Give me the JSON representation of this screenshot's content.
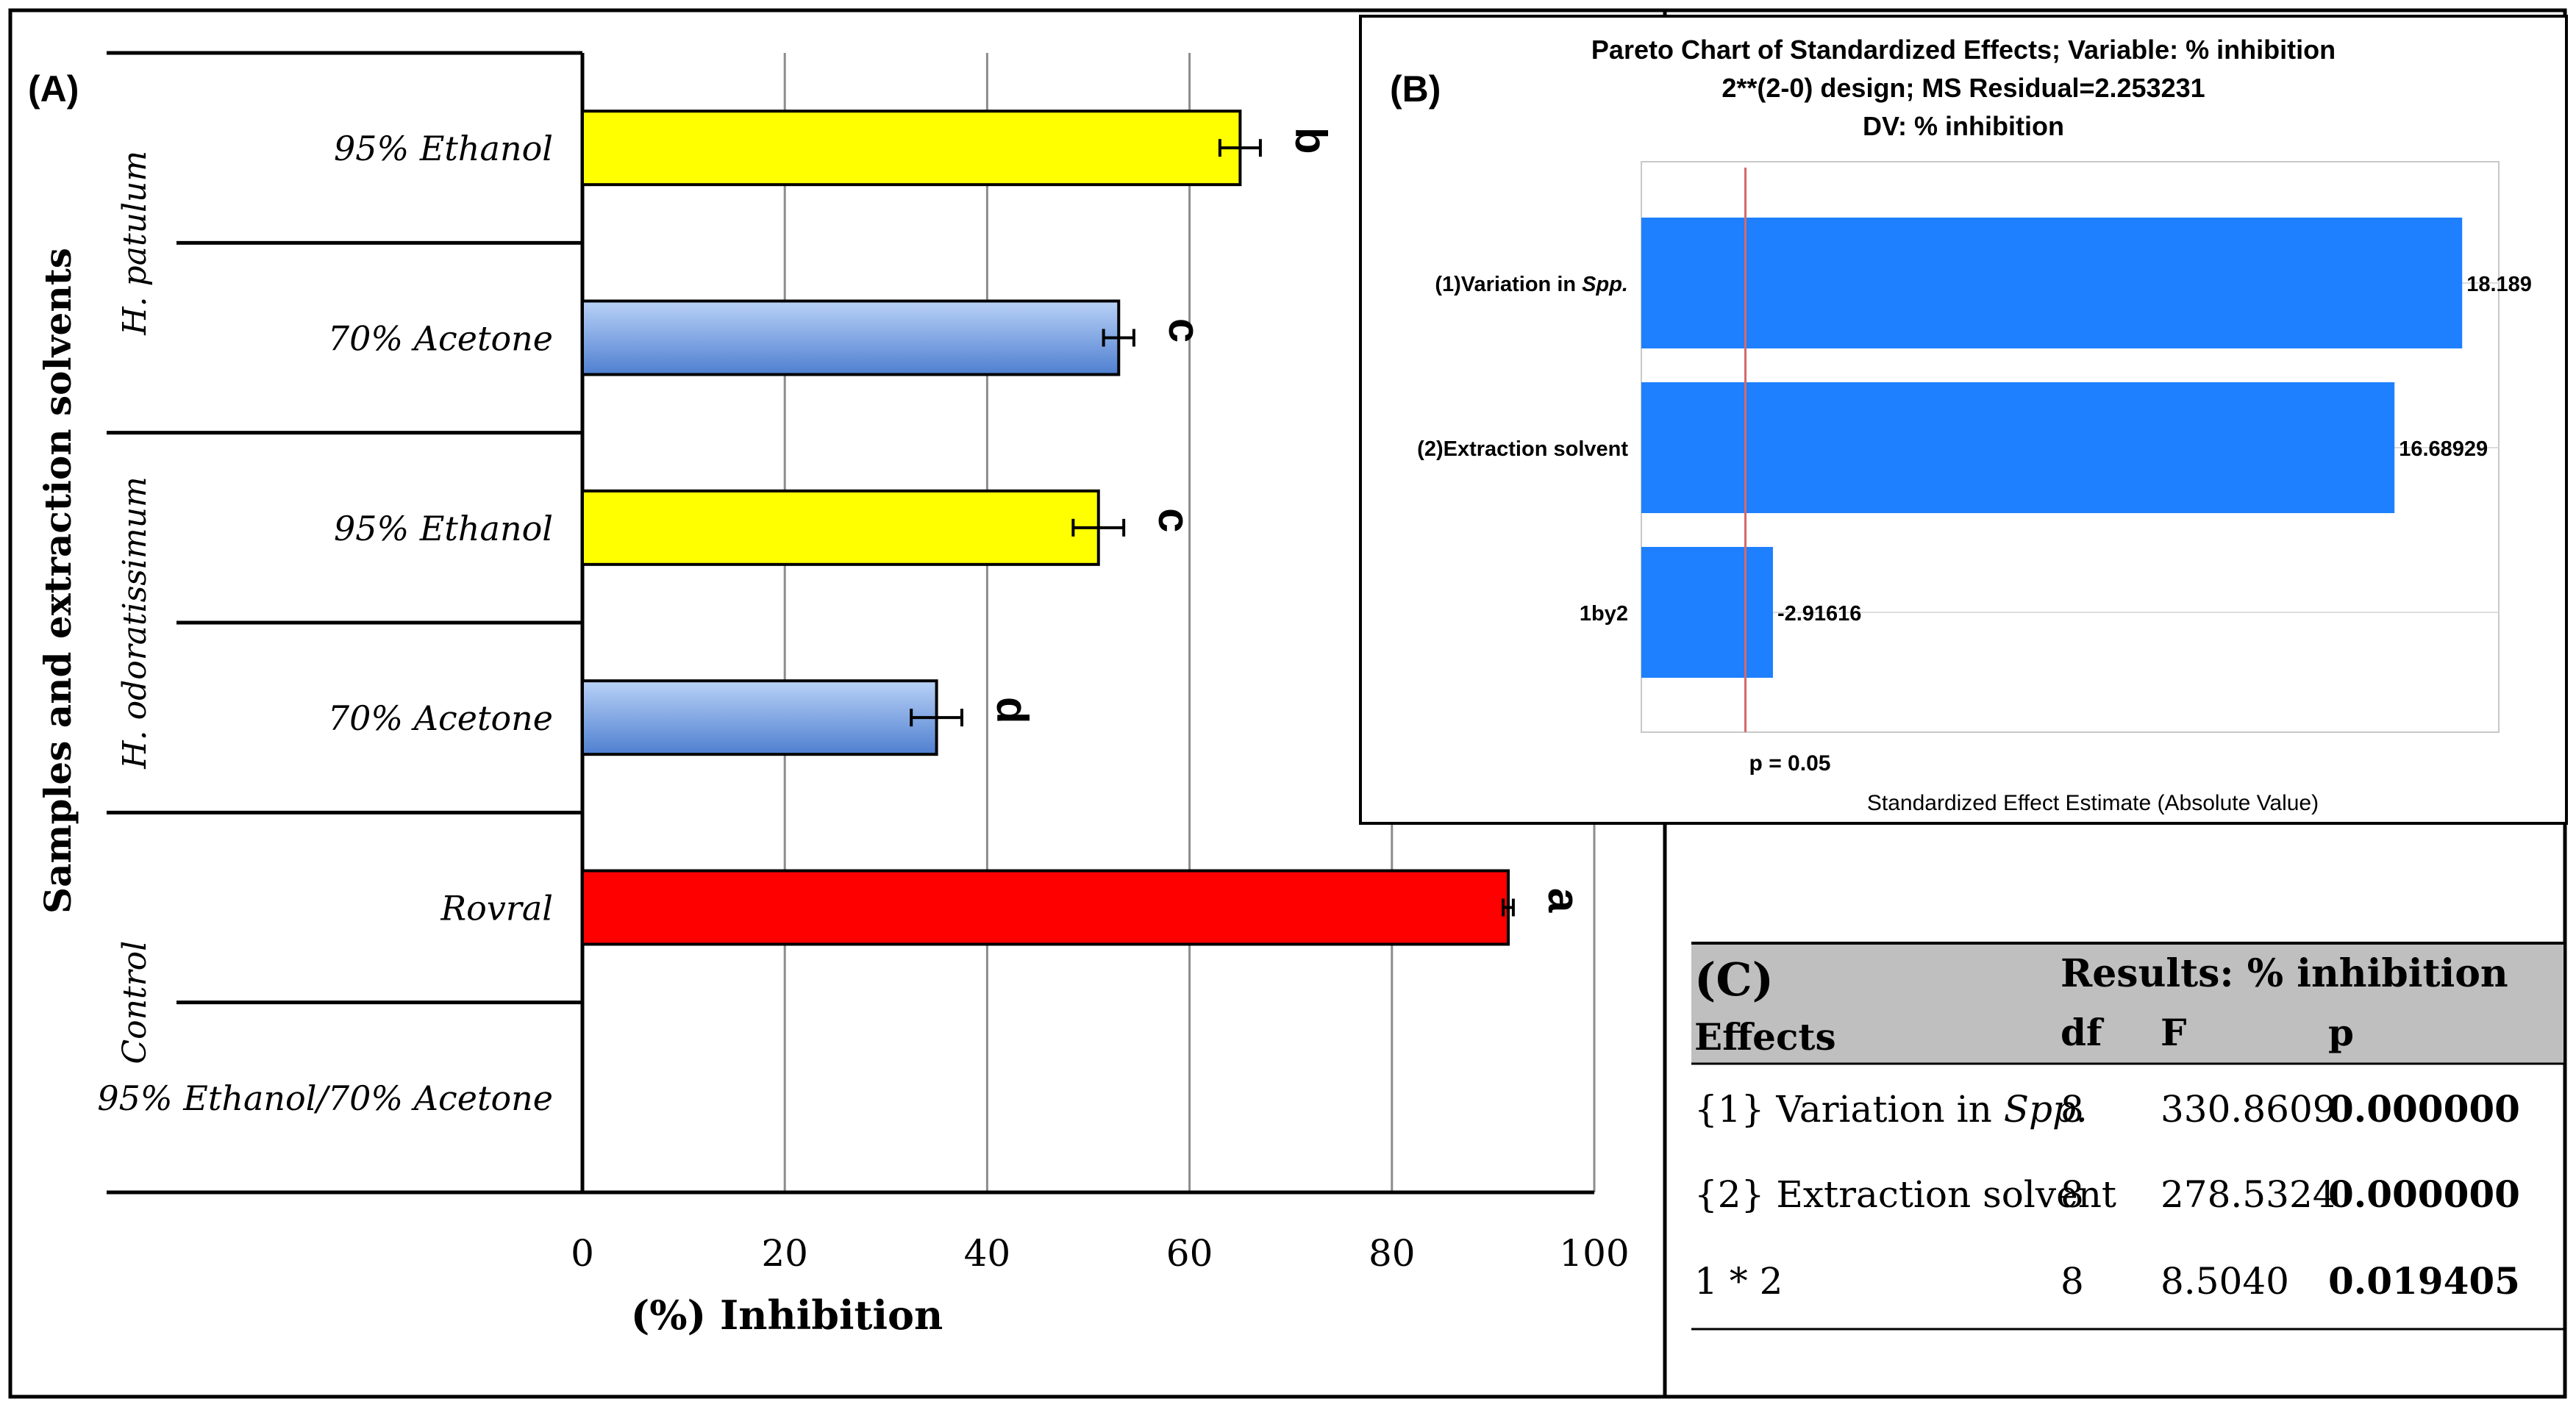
{
  "colors": {
    "yellow": "#FFFF00",
    "blue_light": "#A9C6F2",
    "blue_dark": "#4F7FD0",
    "red": "#FF0000",
    "pareto_bar": "#1E7FFF",
    "ref_line": "#D46A6A",
    "table_header_bg": "#BFBFBF"
  },
  "chart_data": [
    {
      "type": "bar",
      "panel_label": "(A)",
      "orientation": "horizontal",
      "ylabel": "Samples and extraction solvents",
      "xlabel": "(%) Inhibition",
      "xlim": [
        0,
        100
      ],
      "xticks": [
        0,
        20,
        40,
        60,
        80,
        100
      ],
      "grid": true,
      "groups": [
        {
          "label": "H. patulum",
          "rows": [
            0,
            1
          ]
        },
        {
          "label": "H. odoratissimum",
          "rows": [
            2,
            3
          ]
        },
        {
          "label": "Control",
          "rows": [
            4,
            5
          ]
        }
      ],
      "bars": [
        {
          "category": "95% Ethanol",
          "value": 65,
          "error": 2,
          "letter": "b",
          "style": "yellow"
        },
        {
          "category": "70% Acetone",
          "value": 53,
          "error": 1.5,
          "letter": "c",
          "style": "blue"
        },
        {
          "category": "95% Ethanol",
          "value": 51,
          "error": 2.5,
          "letter": "c",
          "style": "yellow"
        },
        {
          "category": "70% Acetone",
          "value": 35,
          "error": 2.5,
          "letter": "d",
          "style": "blue"
        },
        {
          "category": "Rovral",
          "value": 91.5,
          "error": 0.5,
          "letter": "a",
          "style": "red"
        },
        {
          "category": "95% Ethanol/70% Acetone",
          "value": 0,
          "error": 0,
          "letter": "",
          "style": "none"
        }
      ]
    },
    {
      "type": "bar",
      "panel_label": "(B)",
      "orientation": "horizontal",
      "title": [
        "Pareto Chart of Standardized Effects; Variable: % inhibition",
        "2**(2-0) design; MS Residual=2.253231",
        "DV: % inhibition"
      ],
      "xlabel": "Standardized Effect Estimate (Absolute Value)",
      "xlim": [
        0,
        19
      ],
      "reference_line": {
        "value": 2.306,
        "label": "p = 0.05"
      },
      "categories": [
        "(1)Variation in ",
        "(2)Extraction solvent",
        "1by2"
      ],
      "category_italic_suffix": [
        "Spp.",
        "",
        ""
      ],
      "values": [
        18.189,
        16.68929,
        -2.91616
      ],
      "value_labels": [
        "18.189",
        "16.68929",
        "-2.91616"
      ]
    }
  ],
  "table": {
    "panel_label": "(C)",
    "group_header": "Results: % inhibition",
    "effects_header": "Effects",
    "columns": [
      "df",
      "F",
      "p"
    ],
    "rows": [
      {
        "effect": "{1} Variation in ",
        "effect_italic": "Spp.",
        "df": "8",
        "F": "330.8609",
        "p": "0.000000"
      },
      {
        "effect": "{2} Extraction solvent",
        "effect_italic": "",
        "df": "8",
        "F": "278.5324",
        "p": "0.000000"
      },
      {
        "effect": "1 * 2",
        "effect_italic": "",
        "df": "8",
        "F": "8.5040",
        "p": "0.019405"
      }
    ]
  }
}
